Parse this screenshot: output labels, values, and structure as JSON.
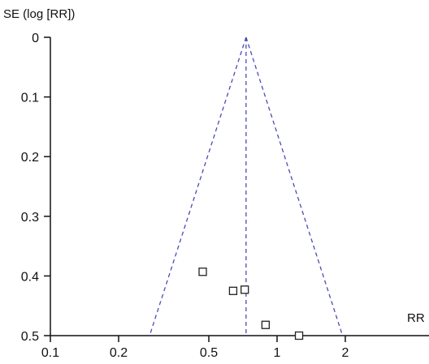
{
  "chart_data": {
    "type": "scatter",
    "subtype": "funnel plot",
    "ylabel": "SE (log [RR])",
    "xlabel": "RR",
    "x_scale": "log",
    "y_inverted": true,
    "xlim": [
      0.1,
      10
    ],
    "ylim": [
      0,
      0.5
    ],
    "x_ticks": [
      0.1,
      0.2,
      0.5,
      1,
      2
    ],
    "x_tick_labels": [
      "0.1",
      "0.2",
      "0.5",
      "1",
      "2"
    ],
    "y_ticks": [
      0,
      0.1,
      0.2,
      0.3,
      0.4,
      0.5
    ],
    "y_tick_labels": [
      "0",
      "0.1",
      "0.2",
      "0.3",
      "0.4",
      "0.5"
    ],
    "pooled_rr": 0.73,
    "funnel_limits_color": "#4a4ab8",
    "points": [
      {
        "x": 0.47,
        "y": 0.393
      },
      {
        "x": 0.64,
        "y": 0.425
      },
      {
        "x": 0.72,
        "y": 0.423
      },
      {
        "x": 0.89,
        "y": 0.482
      },
      {
        "x": 1.25,
        "y": 0.5
      }
    ],
    "grid": false,
    "legend": "none"
  }
}
